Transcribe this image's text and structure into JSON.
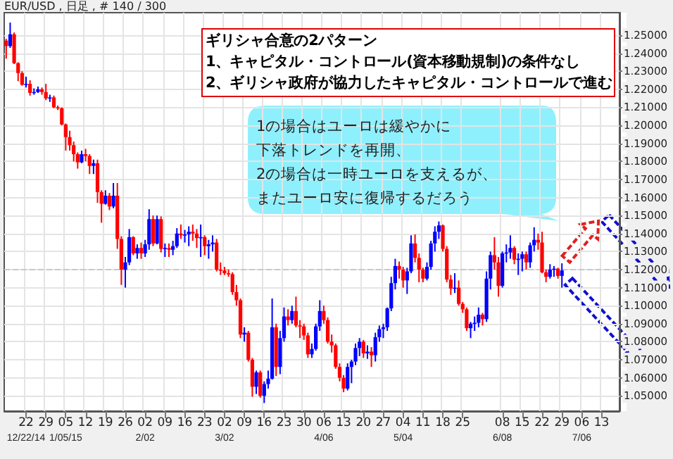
{
  "chart_data": {
    "type": "candlestick",
    "title": "EUR/USD , 日足 , # 140 / 300",
    "annotations": [
      "ギリシャ合意の2パターン\n1、キャピタル・コントロール(資本移動規制)の条件なし\n2、ギリシャ政府が協力したキャピタル・コントロールで進む",
      "1の場合はユーロは緩やかに",
      "下落トレンドを再開、",
      "2の場合は一時ユーロを支えるが、",
      "またユーロ安に復帰するだろう"
    ],
    "categories": [
      null,
      null,
      null,
      null,
      null,
      "22\n12/22/14",
      null,
      null,
      null,
      null,
      "29",
      null,
      null,
      null,
      null,
      "05\n1/05/15",
      null,
      null,
      null,
      null,
      "12",
      null,
      null,
      null,
      null,
      "19",
      null,
      null,
      null,
      null,
      "26",
      null,
      null,
      null,
      null,
      "02\n2/02",
      null,
      null,
      null,
      null,
      "09",
      null,
      null,
      null,
      null,
      "16",
      null,
      null,
      null,
      null,
      "23",
      null,
      null,
      null,
      null,
      "02\n3/02",
      null,
      null,
      null,
      null,
      "09",
      null,
      null,
      null,
      null,
      "16",
      null,
      null,
      null,
      null,
      "23",
      null,
      null,
      null,
      null,
      "30",
      null,
      null,
      null,
      null,
      "06\n4/06",
      null,
      null,
      null,
      null,
      "13",
      null,
      null,
      null,
      null,
      "20",
      null,
      null,
      null,
      null,
      "27",
      null,
      null,
      null,
      null,
      "04\n5/04",
      null,
      null,
      null,
      null,
      "11",
      null,
      null,
      null,
      null,
      "18",
      null,
      null,
      null,
      null,
      "25",
      null,
      null,
      null,
      null,
      null,
      null,
      null,
      null,
      null,
      "08\n6/08",
      null,
      null,
      null,
      null,
      "15",
      null,
      null,
      null,
      null,
      "22",
      null,
      null,
      null,
      null,
      "29",
      null,
      null,
      null,
      null,
      "06\n7/06",
      null,
      null,
      null,
      null,
      "13",
      null,
      null,
      null,
      null
    ],
    "ohlc": [
      [
        1.247,
        1.248,
        1.237,
        1.244
      ],
      [
        1.244,
        1.257,
        1.243,
        1.2505
      ],
      [
        1.2505,
        1.2515,
        1.234,
        1.2345
      ],
      [
        1.2345,
        1.235,
        1.2245,
        1.229
      ],
      [
        1.229,
        1.23,
        1.222,
        1.2225
      ],
      [
        1.2225,
        1.227,
        1.221,
        1.223
      ],
      [
        1.223,
        1.225,
        1.2165,
        1.218
      ],
      [
        1.218,
        1.2205,
        1.217,
        1.2185
      ],
      [
        1.2185,
        1.2215,
        1.218,
        1.22
      ],
      [
        1.22,
        1.221,
        1.217,
        1.2185
      ],
      [
        1.2185,
        1.223,
        1.214,
        1.215
      ],
      [
        1.215,
        1.217,
        1.213,
        1.2155
      ],
      [
        1.2155,
        1.2165,
        1.2095,
        1.21
      ],
      [
        1.21,
        1.211,
        1.2085,
        1.2095
      ],
      [
        1.2095,
        1.21,
        1.2,
        1.2005
      ],
      [
        1.2005,
        1.201,
        1.186,
        1.1935
      ],
      [
        1.1935,
        1.197,
        1.186,
        1.189
      ],
      [
        1.189,
        1.191,
        1.18,
        1.184
      ],
      [
        1.184,
        1.185,
        1.176,
        1.1795
      ],
      [
        1.1795,
        1.186,
        1.179,
        1.184
      ],
      [
        1.184,
        1.187,
        1.18,
        1.183
      ],
      [
        1.183,
        1.184,
        1.173,
        1.1775
      ],
      [
        1.1775,
        1.181,
        1.173,
        1.179
      ],
      [
        1.179,
        1.181,
        1.157,
        1.163
      ],
      [
        1.163,
        1.164,
        1.146,
        1.1565
      ],
      [
        1.1565,
        1.164,
        1.156,
        1.161
      ],
      [
        1.161,
        1.1625,
        1.153,
        1.155
      ],
      [
        1.155,
        1.168,
        1.154,
        1.161
      ],
      [
        1.161,
        1.168,
        1.1315,
        1.137
      ],
      [
        1.137,
        1.1385,
        1.1115,
        1.12
      ],
      [
        1.12,
        1.127,
        1.11,
        1.124
      ],
      [
        1.124,
        1.1425,
        1.1225,
        1.138
      ],
      [
        1.138,
        1.1385,
        1.128,
        1.129
      ],
      [
        1.129,
        1.134,
        1.126,
        1.132
      ],
      [
        1.132,
        1.135,
        1.126,
        1.129
      ],
      [
        1.129,
        1.1365,
        1.127,
        1.134
      ],
      [
        1.134,
        1.1535,
        1.131,
        1.148
      ],
      [
        1.148,
        1.15,
        1.133,
        1.1345
      ],
      [
        1.1345,
        1.15,
        1.134,
        1.148
      ],
      [
        1.148,
        1.1495,
        1.1295,
        1.1315
      ],
      [
        1.1315,
        1.1345,
        1.127,
        1.132
      ],
      [
        1.132,
        1.1345,
        1.127,
        1.131
      ],
      [
        1.131,
        1.136,
        1.128,
        1.133
      ],
      [
        1.133,
        1.143,
        1.132,
        1.14
      ],
      [
        1.14,
        1.145,
        1.137,
        1.139
      ],
      [
        1.139,
        1.142,
        1.135,
        1.1395
      ],
      [
        1.1395,
        1.144,
        1.133,
        1.141
      ],
      [
        1.141,
        1.145,
        1.136,
        1.14
      ],
      [
        1.14,
        1.1425,
        1.132,
        1.1375
      ],
      [
        1.1375,
        1.145,
        1.127,
        1.138
      ],
      [
        1.138,
        1.139,
        1.128,
        1.133
      ],
      [
        1.133,
        1.1365,
        1.126,
        1.134
      ],
      [
        1.134,
        1.139,
        1.13,
        1.135
      ],
      [
        1.135,
        1.137,
        1.119,
        1.12
      ],
      [
        1.12,
        1.124,
        1.117,
        1.1195
      ],
      [
        1.1195,
        1.1215,
        1.117,
        1.118
      ],
      [
        1.118,
        1.12,
        1.116,
        1.1175
      ],
      [
        1.1175,
        1.1185,
        1.106,
        1.1075
      ],
      [
        1.1075,
        1.1115,
        1.1,
        1.103
      ],
      [
        1.103,
        1.104,
        1.082,
        1.084
      ],
      [
        1.084,
        1.088,
        1.08,
        1.085
      ],
      [
        1.085,
        1.086,
        1.069,
        1.07
      ],
      [
        1.07,
        1.071,
        1.0495,
        1.055
      ],
      [
        1.055,
        1.064,
        1.051,
        1.063
      ],
      [
        1.063,
        1.064,
        1.049,
        1.05
      ],
      [
        1.05,
        1.058,
        1.046,
        1.0565
      ],
      [
        1.0565,
        1.064,
        1.054,
        1.0595
      ],
      [
        1.0595,
        1.104,
        1.059,
        1.088
      ],
      [
        1.088,
        1.09,
        1.061,
        1.066
      ],
      [
        1.066,
        1.086,
        1.062,
        1.082
      ],
      [
        1.082,
        1.099,
        1.08,
        1.094
      ],
      [
        1.094,
        1.098,
        1.089,
        1.092
      ],
      [
        1.092,
        1.1,
        1.09,
        1.097
      ],
      [
        1.097,
        1.105,
        1.088,
        1.089
      ],
      [
        1.089,
        1.092,
        1.082,
        1.0885
      ],
      [
        1.0885,
        1.09,
        1.081,
        1.0835
      ],
      [
        1.0835,
        1.085,
        1.071,
        1.073
      ],
      [
        1.073,
        1.079,
        1.071,
        1.076
      ],
      [
        1.076,
        1.09,
        1.075,
        1.0885
      ],
      [
        1.0885,
        1.103,
        1.086,
        1.097
      ],
      [
        1.097,
        1.1,
        1.09,
        1.092
      ],
      [
        1.092,
        1.0935,
        1.079,
        1.08
      ],
      [
        1.08,
        1.084,
        1.074,
        1.078
      ],
      [
        1.078,
        1.079,
        1.065,
        1.066
      ],
      [
        1.066,
        1.068,
        1.058,
        1.06
      ],
      [
        1.06,
        1.0615,
        1.052,
        1.054
      ],
      [
        1.054,
        1.068,
        1.053,
        1.066
      ],
      [
        1.066,
        1.07,
        1.057,
        1.069
      ],
      [
        1.069,
        1.079,
        1.067,
        1.0765
      ],
      [
        1.0765,
        1.082,
        1.072,
        1.08
      ],
      [
        1.08,
        1.081,
        1.071,
        1.0735
      ],
      [
        1.0735,
        1.078,
        1.0705,
        1.0745
      ],
      [
        1.0745,
        1.077,
        1.066,
        1.0725
      ],
      [
        1.0725,
        1.085,
        1.069,
        1.0825
      ],
      [
        1.0825,
        1.089,
        1.08,
        1.087
      ],
      [
        1.087,
        1.09,
        1.082,
        1.088
      ],
      [
        1.088,
        1.099,
        1.086,
        1.0985
      ],
      [
        1.0985,
        1.116,
        1.097,
        1.1125
      ],
      [
        1.1125,
        1.126,
        1.109,
        1.122
      ],
      [
        1.122,
        1.1245,
        1.115,
        1.12
      ],
      [
        1.12,
        1.1215,
        1.11,
        1.114
      ],
      [
        1.114,
        1.121,
        1.1065,
        1.119
      ],
      [
        1.119,
        1.139,
        1.118,
        1.1345
      ],
      [
        1.1345,
        1.1395,
        1.124,
        1.1265
      ],
      [
        1.1265,
        1.129,
        1.113,
        1.12
      ],
      [
        1.12,
        1.121,
        1.113,
        1.115
      ],
      [
        1.115,
        1.124,
        1.114,
        1.1215
      ],
      [
        1.1215,
        1.136,
        1.12,
        1.1345
      ],
      [
        1.1345,
        1.144,
        1.13,
        1.141
      ],
      [
        1.141,
        1.1467,
        1.137,
        1.1445
      ],
      [
        1.1445,
        1.145,
        1.13,
        1.1315
      ],
      [
        1.1315,
        1.133,
        1.113,
        1.1145
      ],
      [
        1.1145,
        1.117,
        1.106,
        1.1095
      ],
      [
        1.1095,
        1.118,
        1.107,
        1.11
      ],
      [
        1.11,
        1.114,
        1.1,
        1.101
      ],
      [
        1.101,
        1.102,
        1.096,
        1.098
      ],
      [
        1.098,
        1.099,
        1.086,
        1.0875
      ],
      [
        1.0875,
        1.091,
        1.082,
        1.09
      ],
      [
        1.09,
        1.094,
        1.086,
        1.0905
      ],
      [
        1.0905,
        1.099,
        1.088,
        1.095
      ],
      [
        1.095,
        1.096,
        1.089,
        1.0925
      ],
      [
        1.0925,
        1.119,
        1.091,
        1.115
      ],
      [
        1.115,
        1.13,
        1.109,
        1.128
      ],
      [
        1.128,
        1.138,
        1.12,
        1.124
      ],
      [
        1.124,
        1.127,
        1.105,
        1.111
      ],
      [
        1.111,
        1.13,
        1.11,
        1.129
      ],
      [
        1.129,
        1.134,
        1.124,
        1.1295
      ],
      [
        1.1295,
        1.139,
        1.126,
        1.132
      ],
      [
        1.132,
        1.133,
        1.123,
        1.1255
      ],
      [
        1.1255,
        1.129,
        1.117,
        1.126
      ],
      [
        1.126,
        1.13,
        1.119,
        1.1285
      ],
      [
        1.1285,
        1.13,
        1.12,
        1.124
      ],
      [
        1.124,
        1.135,
        1.121,
        1.1335
      ],
      [
        1.1335,
        1.1435,
        1.13,
        1.1365
      ],
      [
        1.1365,
        1.14,
        1.131,
        1.135
      ],
      [
        1.135,
        1.141,
        1.118,
        1.1185
      ],
      [
        1.1185,
        1.12,
        1.113,
        1.116
      ],
      [
        1.116,
        1.123,
        1.115,
        1.12
      ],
      [
        1.12,
        1.122,
        1.116,
        1.1205
      ],
      [
        1.1205,
        1.121,
        1.115,
        1.1165
      ],
      [
        1.1165,
        1.1235,
        1.11,
        1.1195
      ],
      null,
      null,
      null,
      null,
      null,
      null,
      null,
      null,
      null,
      null,
      null,
      null,
      null,
      null
    ],
    "colors": [
      "#ff0000",
      "#0000ff",
      "#ff0000",
      "#ff0000",
      "#ff0000",
      "#0000ff",
      "#ff0000",
      "#0000ff",
      "#0000ff",
      "#ff0000",
      "#ff0000",
      "#0000ff",
      "#ff0000",
      "#ff0000",
      "#ff0000",
      "#ff0000",
      "#ff0000",
      "#ff0000",
      "#ff0000",
      "#0000ff",
      "#ff0000",
      "#ff0000",
      "#0000ff",
      "#ff0000",
      "#ff0000",
      "#0000ff",
      "#ff0000",
      "#0000ff",
      "#ff0000",
      "#ff0000",
      "#0000ff",
      "#0000ff",
      "#ff0000",
      "#0000ff",
      "#ff0000",
      "#0000ff",
      "#0000ff",
      "#ff0000",
      "#0000ff",
      "#ff0000",
      "#0000ff",
      "#ff0000",
      "#0000ff",
      "#0000ff",
      "#ff0000",
      "#0000ff",
      "#0000ff",
      "#ff0000",
      "#ff0000",
      "#0000ff",
      "#ff0000",
      "#0000ff",
      "#0000ff",
      "#ff0000",
      "#ff0000",
      "#ff0000",
      "#ff0000",
      "#ff0000",
      "#ff0000",
      "#ff0000",
      "#0000ff",
      "#ff0000",
      "#ff0000",
      "#0000ff",
      "#ff0000",
      "#0000ff",
      "#0000ff",
      "#0000ff",
      "#ff0000",
      "#0000ff",
      "#0000ff",
      "#ff0000",
      "#0000ff",
      "#ff0000",
      "#ff0000",
      "#ff0000",
      "#ff0000",
      "#0000ff",
      "#0000ff",
      "#0000ff",
      "#ff0000",
      "#ff0000",
      "#ff0000",
      "#ff0000",
      "#ff0000",
      "#ff0000",
      "#0000ff",
      "#0000ff",
      "#0000ff",
      "#0000ff",
      "#ff0000",
      "#0000ff",
      "#ff0000",
      "#0000ff",
      "#0000ff",
      "#0000ff",
      "#0000ff",
      "#0000ff",
      "#0000ff",
      "#ff0000",
      "#ff0000",
      "#0000ff",
      "#0000ff",
      "#ff0000",
      "#ff0000",
      "#ff0000",
      "#0000ff",
      "#0000ff",
      "#0000ff",
      "#0000ff",
      "#ff0000",
      "#ff0000",
      "#ff0000",
      "#0000ff",
      "#ff0000",
      "#ff0000",
      "#ff0000",
      "#0000ff",
      "#0000ff",
      "#0000ff",
      "#ff0000",
      "#0000ff",
      "#0000ff",
      "#ff0000",
      "#ff0000",
      "#0000ff",
      "#0000ff",
      "#0000ff",
      "#ff0000",
      "#0000ff",
      "#0000ff",
      "#ff0000",
      "#0000ff",
      "#0000ff",
      "#ff0000",
      "#ff0000",
      "#ff0000",
      "#0000ff",
      "#0000ff",
      "#ff0000",
      "#0000ff",
      null,
      null,
      null,
      null,
      null,
      null,
      null,
      null,
      null,
      null,
      null,
      null,
      null,
      null
    ],
    "ylim": [
      1.0415,
      1.2625
    ],
    "yticks": [
      {
        "value": 1.05,
        "label": "1.05000"
      },
      {
        "value": 1.06,
        "label": "1.06000"
      },
      {
        "value": 1.07,
        "label": "1.07000"
      },
      {
        "value": 1.08,
        "label": "1.08000"
      },
      {
        "value": 1.09,
        "label": "1.09000"
      },
      {
        "value": 1.1,
        "label": "1.10000"
      },
      {
        "value": 1.11,
        "label": "1.11000"
      },
      {
        "value": 1.12,
        "label": "1.12000"
      },
      {
        "value": 1.13,
        "label": "1.13000"
      },
      {
        "value": 1.14,
        "label": "1.14000"
      },
      {
        "value": 1.15,
        "label": "1.15000"
      },
      {
        "value": 1.16,
        "label": "1.16000"
      },
      {
        "value": 1.17,
        "label": "1.17000"
      },
      {
        "value": 1.18,
        "label": "1.18000"
      },
      {
        "value": 1.19,
        "label": "1.19000"
      },
      {
        "value": 1.2,
        "label": "1.20000"
      },
      {
        "value": 1.21,
        "label": "1.21000"
      },
      {
        "value": 1.22,
        "label": "1.22000"
      },
      {
        "value": 1.23,
        "label": "1.23000"
      },
      {
        "value": 1.24,
        "label": "1.24000"
      },
      {
        "value": 1.25,
        "label": "1.25000"
      }
    ],
    "grid": true,
    "ref_lines": [
      {
        "axis": "y",
        "value": 1.1195,
        "color": "#c8c8c8",
        "line_style": "dashed"
      }
    ]
  }
}
